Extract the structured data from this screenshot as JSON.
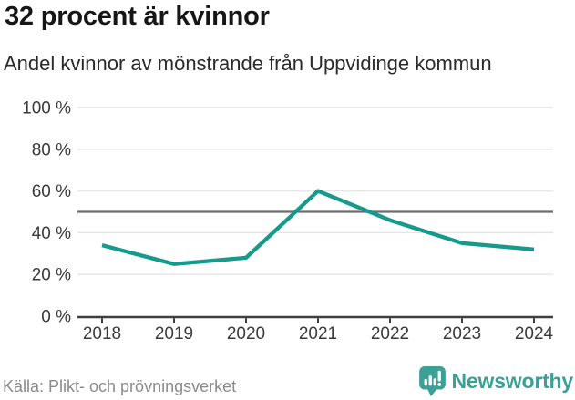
{
  "chart_data": {
    "type": "line",
    "title": "32 procent är kvinnor",
    "subtitle": "Andel kvinnor av mönstrande från Uppvidinge kommun",
    "x": [
      2018,
      2019,
      2020,
      2021,
      2022,
      2023,
      2024
    ],
    "series": [
      {
        "name": "Andel kvinnor av mönstrande",
        "values": [
          34,
          25,
          28,
          60,
          46,
          35,
          32
        ]
      }
    ],
    "xlabel": "",
    "ylabel": "",
    "ylim": [
      0,
      100
    ],
    "yticks": [
      0,
      20,
      40,
      60,
      80,
      100
    ],
    "ytick_suffix": " %",
    "reference_line": 50,
    "grid": true,
    "legend": false,
    "colors": {
      "line": "#169a8c",
      "reference": "#6e6e6e",
      "grid": "#e4e4e4",
      "axis": "#3f3f3f",
      "tick_label": "#3a3a3a"
    }
  },
  "footer": {
    "source": "Källa: Plikt- och prövningsverket",
    "brand": "Newsworthy",
    "brand_color": "#3ca096"
  }
}
